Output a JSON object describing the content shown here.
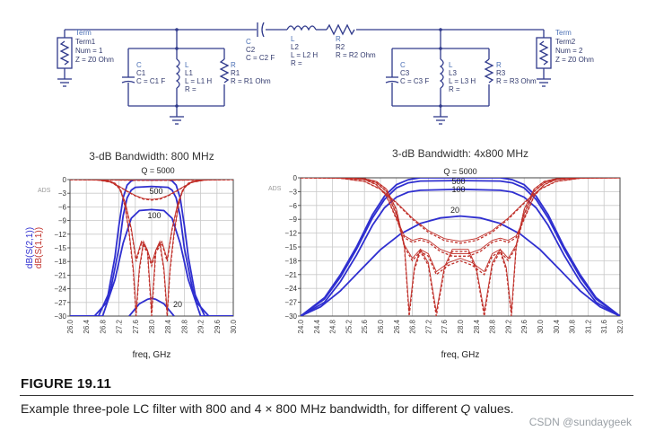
{
  "schematic": {
    "term1": {
      "kind": "Term",
      "name": "Term1",
      "num": "Num = 1",
      "z": "Z = Z0 Ohm"
    },
    "term2": {
      "kind": "Term",
      "name": "Term2",
      "num": "Num = 2",
      "z": "Z = Z0 Ohm"
    },
    "c1": {
      "kind": "C",
      "name": "C1",
      "value": "C = C1 F"
    },
    "l1": {
      "kind": "L",
      "name": "L1",
      "value": "L = L1 H",
      "r": "R ="
    },
    "r1": {
      "kind": "R",
      "name": "R1",
      "value": "R = R1 Ohm"
    },
    "c2": {
      "kind": "C",
      "name": "C2",
      "value": "C = C2 F"
    },
    "l2": {
      "kind": "L",
      "name": "L2",
      "value": "L = L2 H",
      "r": "R ="
    },
    "r2": {
      "kind": "R",
      "name": "R2",
      "value": "R = R2 Ohm"
    },
    "c3": {
      "kind": "C",
      "name": "C3",
      "value": "C = C3 F"
    },
    "l3": {
      "kind": "L",
      "name": "L3",
      "value": "L = L3 H",
      "r": "R ="
    },
    "r3": {
      "kind": "R",
      "name": "R3",
      "value": "R = R3 Ohm"
    }
  },
  "chart_data": [
    {
      "type": "line",
      "title": "3-dB Bandwidth: 800 MHz",
      "watermark": "ADS",
      "xlabel": "freq, GHz",
      "ylabel_s21": "dB(S(2,1))",
      "ylabel_s11": "dB(S(1,1))",
      "xlim": [
        26.0,
        30.0
      ],
      "ylim": [
        -30,
        0
      ],
      "xticks": [
        "26.0",
        "26.4",
        "26.8",
        "27.2",
        "27.6",
        "28.0",
        "28.4",
        "28.8",
        "29.2",
        "29.6",
        "30.0"
      ],
      "yticks": [
        "0",
        "−3",
        "−6",
        "−9",
        "−12",
        "−15",
        "−18",
        "−21",
        "−24",
        "−27",
        "−30"
      ],
      "grid": true,
      "series": [
        {
          "group": "S21",
          "label": "Q = 5000",
          "x": [
            26.0,
            26.6,
            26.9,
            27.1,
            27.2,
            27.3,
            27.4,
            27.5,
            27.6,
            28.0,
            28.4,
            28.5,
            28.6,
            28.7,
            28.8,
            28.9,
            29.1,
            29.4,
            30.0
          ],
          "y": [
            -30,
            -30,
            -27,
            -17,
            -10,
            -4,
            -1.2,
            -0.3,
            0,
            0,
            0,
            -0.3,
            -1.2,
            -4,
            -10,
            -17,
            -27,
            -30,
            -30
          ]
        },
        {
          "group": "S21",
          "label": "500",
          "x": [
            26.0,
            26.7,
            27.0,
            27.2,
            27.3,
            27.4,
            27.5,
            27.6,
            28.0,
            28.4,
            28.5,
            28.6,
            28.7,
            28.8,
            29.0,
            29.3,
            30.0
          ],
          "y": [
            -30,
            -30,
            -24,
            -15,
            -8,
            -4,
            -2.3,
            -1.7,
            -1.5,
            -1.7,
            -2.3,
            -4,
            -8,
            -15,
            -24,
            -30,
            -30
          ]
        },
        {
          "group": "S21",
          "label": "100",
          "x": [
            26.0,
            26.8,
            27.1,
            27.3,
            27.5,
            27.7,
            28.0,
            28.3,
            28.5,
            28.7,
            28.9,
            29.2,
            30.0
          ],
          "y": [
            -30,
            -30,
            -22,
            -14,
            -8.5,
            -6.8,
            -6.6,
            -6.8,
            -8.5,
            -14,
            -22,
            -30,
            -30
          ]
        },
        {
          "group": "S21",
          "label": "20",
          "x": [
            27.45,
            27.7,
            27.9,
            28.0,
            28.1,
            28.3,
            28.55
          ],
          "y": [
            -30,
            -27.3,
            -26.3,
            -26.1,
            -26.3,
            -27.3,
            -30
          ]
        },
        {
          "group": "S11",
          "label": "Q = 5000",
          "x": [
            26.0,
            26.5,
            26.9,
            27.1,
            27.25,
            27.35,
            27.45,
            27.55,
            27.62,
            27.7,
            27.8,
            27.9,
            28.0,
            28.1,
            28.2,
            28.3,
            28.38,
            28.45,
            28.55,
            28.65,
            28.75,
            28.9,
            29.1,
            29.5,
            30.0
          ],
          "y": [
            0,
            0,
            -0.2,
            -0.8,
            -2.5,
            -6,
            -12,
            -20,
            -30,
            -20,
            -14,
            -16,
            -30,
            -16,
            -14,
            -20,
            -30,
            -20,
            -12,
            -6,
            -2.5,
            -0.8,
            -0.2,
            0,
            0
          ]
        },
        {
          "group": "S11",
          "label": "500",
          "x": [
            26.0,
            26.6,
            27.0,
            27.2,
            27.35,
            27.5,
            27.62,
            27.75,
            27.9,
            28.0,
            28.1,
            28.25,
            28.38,
            28.5,
            28.65,
            28.8,
            29.0,
            29.4,
            30.0
          ],
          "y": [
            0,
            0,
            -0.4,
            -1.8,
            -5,
            -11,
            -18,
            -14,
            -16,
            -19,
            -16,
            -14,
            -18,
            -11,
            -5,
            -1.8,
            -0.4,
            0,
            0
          ]
        },
        {
          "group": "S11",
          "label": "100",
          "x": [
            26.0,
            26.7,
            27.0,
            27.2,
            27.4,
            27.6,
            27.8,
            28.0,
            28.2,
            28.4,
            28.6,
            28.8,
            29.0,
            29.3,
            30.0
          ],
          "y": [
            0,
            -0.1,
            -0.6,
            -1.5,
            -2.6,
            -3.6,
            -4.3,
            -4.5,
            -4.3,
            -3.6,
            -2.6,
            -1.5,
            -0.6,
            -0.1,
            0
          ]
        },
        {
          "group": "S11",
          "label": "20",
          "x": [
            26.0,
            26.8,
            27.2,
            27.6,
            28.0,
            28.4,
            28.8,
            29.2,
            30.0
          ],
          "y": [
            0,
            -0.05,
            -0.1,
            -0.15,
            -0.18,
            -0.15,
            -0.1,
            -0.05,
            0
          ]
        }
      ],
      "annotations": [
        "Q = 5000",
        "500",
        "100",
        "20"
      ]
    },
    {
      "type": "line",
      "title": "3-dB Bandwidth: 4x800 MHz",
      "watermark": "ADS",
      "xlabel": "freq, GHz",
      "xlim": [
        24.0,
        32.0
      ],
      "ylim": [
        -30,
        0
      ],
      "xticks": [
        "24.0",
        "24.4",
        "24.8",
        "25.2",
        "25.6",
        "26.0",
        "26.4",
        "26.8",
        "27.2",
        "27.6",
        "28.0",
        "28.4",
        "28.8",
        "29.2",
        "29.6",
        "30.0",
        "30.4",
        "30.8",
        "31.2",
        "31.6",
        "32.0"
      ],
      "yticks": [
        "0",
        "−3",
        "−6",
        "−9",
        "−12",
        "−15",
        "−18",
        "−21",
        "−24",
        "−27",
        "−30"
      ],
      "grid": true,
      "series": [
        {
          "group": "S21",
          "label": "Q = 5000",
          "x": [
            24.0,
            24.6,
            25.0,
            25.4,
            25.8,
            26.1,
            26.4,
            26.7,
            27.0,
            28.0,
            29.0,
            29.3,
            29.6,
            29.9,
            30.2,
            30.6,
            31.0,
            31.4,
            32.0
          ],
          "y": [
            -30,
            -26,
            -21,
            -15,
            -8,
            -4,
            -1.5,
            -0.4,
            0,
            0,
            0,
            -0.4,
            -1.5,
            -4,
            -8,
            -15,
            -21,
            -26,
            -30
          ]
        },
        {
          "group": "S21",
          "label": "500",
          "x": [
            24.0,
            24.6,
            25.0,
            25.4,
            25.8,
            26.1,
            26.4,
            26.7,
            27.0,
            28.0,
            29.0,
            29.3,
            29.6,
            29.9,
            30.2,
            30.6,
            31.0,
            31.4,
            32.0
          ],
          "y": [
            -30,
            -26.3,
            -21.5,
            -15.5,
            -8.7,
            -4.7,
            -2.2,
            -1.1,
            -0.7,
            -0.6,
            -0.7,
            -1.1,
            -2.2,
            -4.7,
            -8.7,
            -15.5,
            -21.5,
            -26.3,
            -30
          ]
        },
        {
          "group": "S21",
          "label": "100",
          "x": [
            24.0,
            24.6,
            25.0,
            25.4,
            25.8,
            26.1,
            26.4,
            26.7,
            27.0,
            28.0,
            29.0,
            29.3,
            29.6,
            29.9,
            30.2,
            30.6,
            31.0,
            31.4,
            32.0
          ],
          "y": [
            -30,
            -27,
            -22.5,
            -16.8,
            -10.3,
            -6.5,
            -4.2,
            -3.1,
            -2.7,
            -2.5,
            -2.7,
            -3.1,
            -4.2,
            -6.5,
            -10.3,
            -16.8,
            -22.5,
            -27,
            -30
          ]
        },
        {
          "group": "S21",
          "label": "20",
          "x": [
            24.0,
            24.5,
            25.0,
            25.5,
            26.0,
            26.5,
            27.0,
            27.5,
            28.0,
            28.5,
            29.0,
            29.5,
            30.0,
            30.5,
            31.0,
            31.5,
            32.0
          ],
          "y": [
            -30,
            -28,
            -24.5,
            -20,
            -15.6,
            -12.2,
            -9.9,
            -8.7,
            -8.3,
            -8.7,
            -9.9,
            -12.2,
            -15.6,
            -20,
            -24.5,
            -28,
            -30
          ]
        },
        {
          "group": "S11",
          "label": "Q = 5000",
          "x": [
            24.0,
            25.0,
            25.6,
            25.9,
            26.15,
            26.4,
            26.6,
            26.72,
            26.85,
            27.0,
            27.2,
            27.4,
            27.6,
            27.8,
            28.0,
            28.2,
            28.4,
            28.6,
            28.8,
            29.0,
            29.15,
            29.28,
            29.4,
            29.6,
            29.85,
            30.1,
            30.4,
            31.0,
            32.0
          ],
          "y": [
            0,
            0,
            -0.2,
            -0.8,
            -2.5,
            -7,
            -15,
            -30,
            -20,
            -16,
            -19,
            -30,
            -20,
            -16,
            -16,
            -16,
            -20,
            -30,
            -19,
            -16,
            -20,
            -30,
            -15,
            -7,
            -2.5,
            -0.8,
            -0.2,
            0,
            0
          ]
        },
        {
          "group": "S11",
          "label": "500",
          "x": [
            24.0,
            25.0,
            25.6,
            25.9,
            26.15,
            26.4,
            26.6,
            26.8,
            27.0,
            27.2,
            27.4,
            27.7,
            28.0,
            28.3,
            28.6,
            28.8,
            29.0,
            29.2,
            29.4,
            29.6,
            29.85,
            30.1,
            30.4,
            31.0,
            32.0
          ],
          "y": [
            0,
            0,
            -0.3,
            -1.1,
            -3,
            -8,
            -15,
            -18,
            -16,
            -17,
            -21,
            -19,
            -18,
            -19,
            -21,
            -17,
            -16,
            -18,
            -15,
            -8,
            -3,
            -1.1,
            -0.3,
            0,
            0
          ]
        },
        {
          "group": "S11",
          "label": "100",
          "x": [
            24.0,
            25.0,
            25.6,
            25.9,
            26.15,
            26.4,
            26.6,
            26.8,
            27.0,
            27.2,
            27.5,
            27.8,
            28.0,
            28.2,
            28.5,
            28.8,
            29.0,
            29.2,
            29.4,
            29.6,
            29.85,
            30.1,
            30.4,
            31.0,
            32.0
          ],
          "y": [
            0,
            0,
            -0.4,
            -1.5,
            -4,
            -9,
            -13,
            -14,
            -13.5,
            -14,
            -16,
            -17,
            -17,
            -17,
            -16,
            -14,
            -13.5,
            -14,
            -13,
            -9,
            -4,
            -1.5,
            -0.4,
            0,
            0
          ]
        },
        {
          "group": "S11",
          "label": "20",
          "x": [
            24.0,
            25.0,
            25.6,
            26.0,
            26.4,
            26.8,
            27.2,
            27.6,
            28.0,
            28.4,
            28.8,
            29.2,
            29.6,
            30.0,
            30.4,
            31.0,
            32.0
          ],
          "y": [
            0,
            -0.1,
            -0.8,
            -2.5,
            -5.5,
            -9,
            -11.8,
            -13.6,
            -14.2,
            -13.6,
            -11.8,
            -9,
            -5.5,
            -2.5,
            -0.8,
            -0.1,
            0
          ]
        }
      ],
      "annotations": [
        "Q = 5000",
        "500",
        "100",
        "20"
      ]
    }
  ],
  "caption": {
    "title": "FIGURE 19.11",
    "text_before_q": "Example three-pole LC filter with 800 and 4 × 800 MHz bandwidth, for different ",
    "q": "Q",
    "text_after_q": " values."
  },
  "watermark": "CSDN @sundaygeek",
  "colors": {
    "s21": "#2f2fd0",
    "s11": "#c0302a",
    "schematic_wire": "#303a8c",
    "schematic_text": "#333b6e",
    "label_blue": "#4a6fb5",
    "grid": "#c9c9c9"
  }
}
